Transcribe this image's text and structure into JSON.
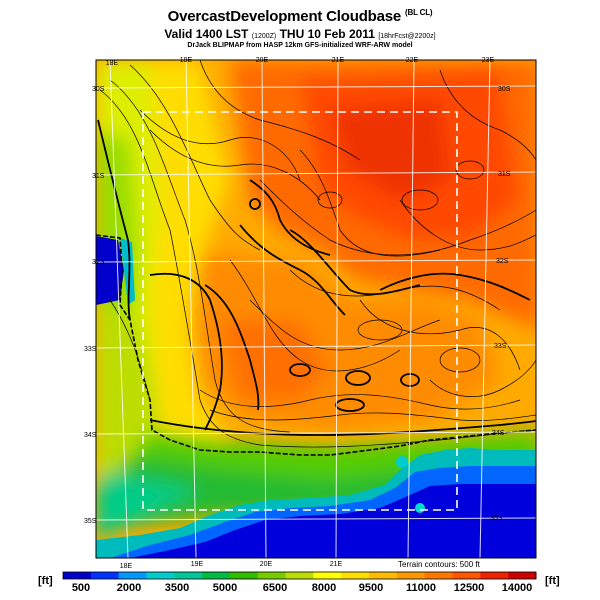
{
  "header": {
    "title": "OvercastDevelopment Cloudbase",
    "title_suffix": "(BL CL)",
    "valid": "Valid 1400 LST",
    "valid_code": "(1200Z)",
    "date": "THU 10 Feb 2011",
    "forecast": "[18hrFcst@2200z]",
    "credit": "DrJack BLIPMAP from HASP 12km GFS-initialized WRF-ARW model"
  },
  "map": {
    "lon_labels_top": [
      "18E",
      "19E",
      "20E",
      "21E",
      "22E",
      "23E"
    ],
    "lon_labels_bottom": [
      "18E",
      "19E",
      "20E",
      "21E"
    ],
    "lat_labels_left": [
      "30S",
      "31S",
      "32S",
      "33S",
      "34S",
      "35S"
    ],
    "lat_labels_right": [
      "30S",
      "31S",
      "32S",
      "33S",
      "34S",
      "35S"
    ],
    "terrain_note": "Terrain contours: 500 ft"
  },
  "colorbar": {
    "unit_left": "[ft]",
    "unit_right": "[ft]",
    "tick_labels": [
      "500",
      "2000",
      "3500",
      "5000",
      "6500",
      "8000",
      "9500",
      "11000",
      "12500",
      "14000"
    ],
    "colors": [
      "#0000c8",
      "#0033ff",
      "#0099ff",
      "#00cccc",
      "#00c89a",
      "#00bb44",
      "#33bb00",
      "#77cc00",
      "#bbdd00",
      "#ffff00",
      "#ffdd00",
      "#ffbb00",
      "#ff9900",
      "#ff7700",
      "#ff5500",
      "#ee2200",
      "#cc0000"
    ]
  }
}
